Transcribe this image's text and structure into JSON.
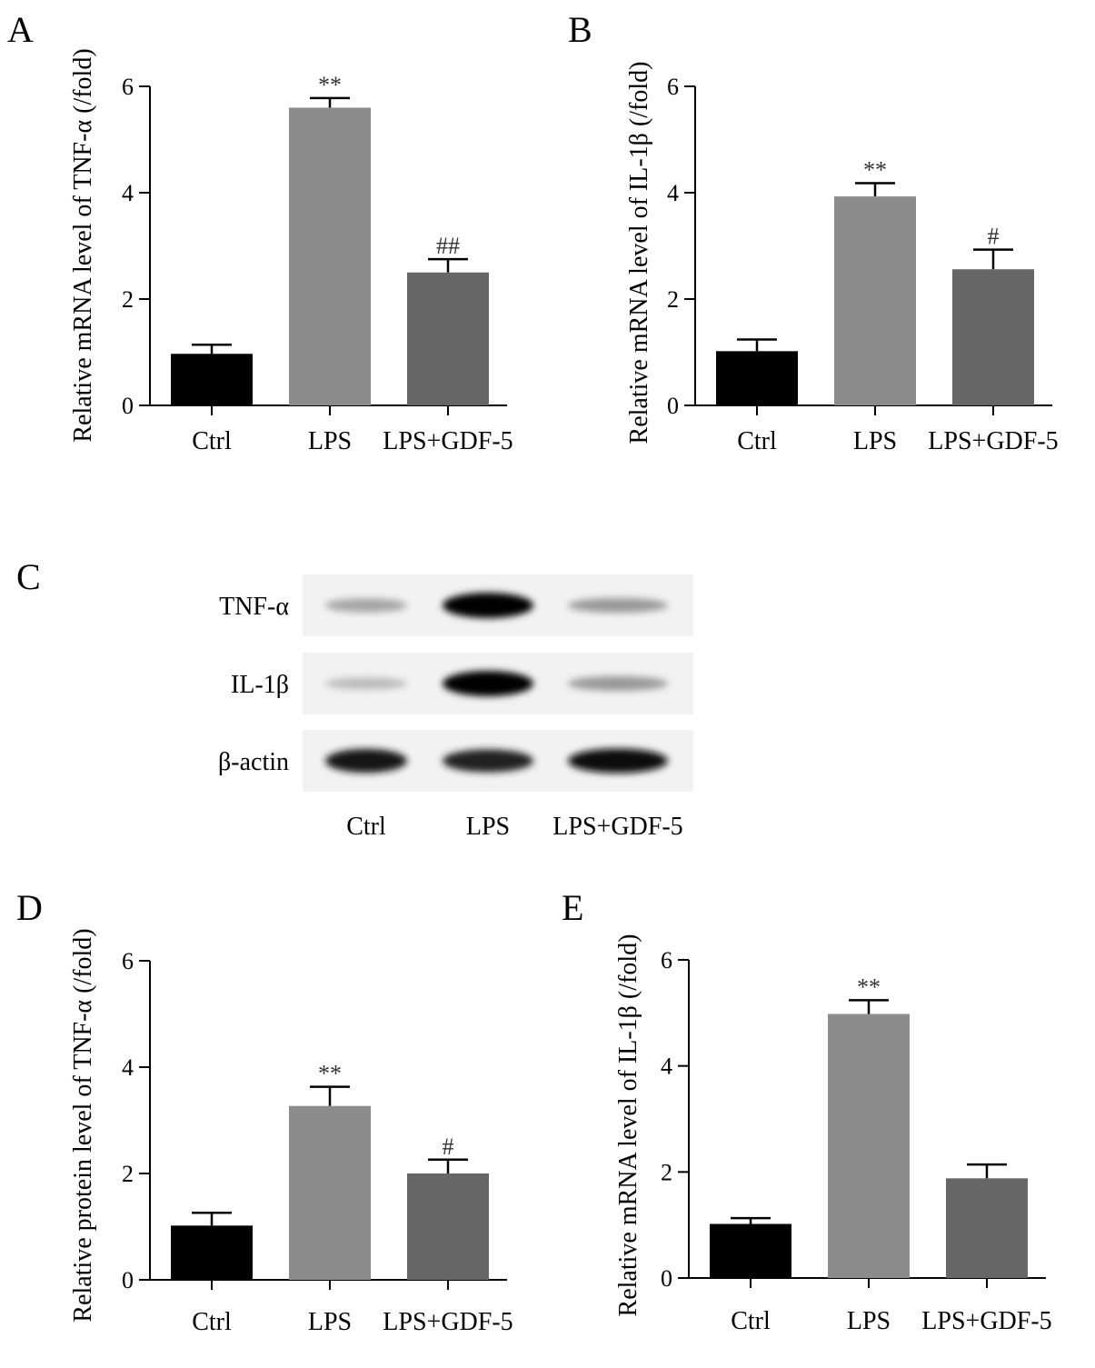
{
  "colors": {
    "Ctrl": "#000000",
    "LPS": "#8c8c8c",
    "LPS+GDF-5": "#666666",
    "axis": "#000000"
  },
  "chart_data": [
    {
      "panel": "A",
      "type": "bar",
      "categories": [
        "Ctrl",
        "LPS",
        "LPS+GDF-5"
      ],
      "values": [
        0.97,
        5.6,
        2.5
      ],
      "errors": [
        0.17,
        0.18,
        0.25
      ],
      "annotations": [
        "",
        "**",
        "##"
      ],
      "ylabel": "Relative mRNA level of TNF-α (/fold)",
      "ylim": [
        0,
        6
      ],
      "yticks": [
        0,
        2,
        4,
        6
      ]
    },
    {
      "panel": "B",
      "type": "bar",
      "categories": [
        "Ctrl",
        "LPS",
        "LPS+GDF-5"
      ],
      "values": [
        1.02,
        3.93,
        2.56
      ],
      "errors": [
        0.22,
        0.25,
        0.37
      ],
      "annotations": [
        "",
        "**",
        "#"
      ],
      "ylabel": "Relative mRNA level of IL-1β (/fold)",
      "ylim": [
        0,
        6
      ],
      "yticks": [
        0,
        2,
        4,
        6
      ]
    },
    {
      "panel": "D",
      "type": "bar",
      "categories": [
        "Ctrl",
        "LPS",
        "LPS+GDF-5"
      ],
      "values": [
        1.02,
        3.27,
        2.0
      ],
      "errors": [
        0.24,
        0.36,
        0.26
      ],
      "annotations": [
        "",
        "**",
        "#"
      ],
      "ylabel": "Relative protein level of TNF-α (/fold)",
      "ylim": [
        0,
        6
      ],
      "yticks": [
        0,
        2,
        4,
        6
      ]
    },
    {
      "panel": "E",
      "type": "bar",
      "categories": [
        "Ctrl",
        "LPS",
        "LPS+GDF-5"
      ],
      "values": [
        1.02,
        4.98,
        1.88
      ],
      "errors": [
        0.11,
        0.26,
        0.26
      ],
      "annotations": [
        "",
        "**",
        ""
      ],
      "ylabel": "Relative mRNA level of IL-1β (/fold)",
      "ylim": [
        0,
        6
      ],
      "yticks": [
        0,
        2,
        4,
        6
      ]
    }
  ],
  "blot": {
    "panel": "C",
    "rows": [
      {
        "label": "TNF-α",
        "intensities": [
          0.3,
          1.0,
          0.35
        ]
      },
      {
        "label": "IL-1β",
        "intensities": [
          0.2,
          1.0,
          0.35
        ]
      },
      {
        "label": "β-actin",
        "intensities": [
          0.9,
          0.85,
          0.95
        ]
      }
    ],
    "lanes": [
      "Ctrl",
      "LPS",
      "LPS+GDF-5"
    ]
  }
}
